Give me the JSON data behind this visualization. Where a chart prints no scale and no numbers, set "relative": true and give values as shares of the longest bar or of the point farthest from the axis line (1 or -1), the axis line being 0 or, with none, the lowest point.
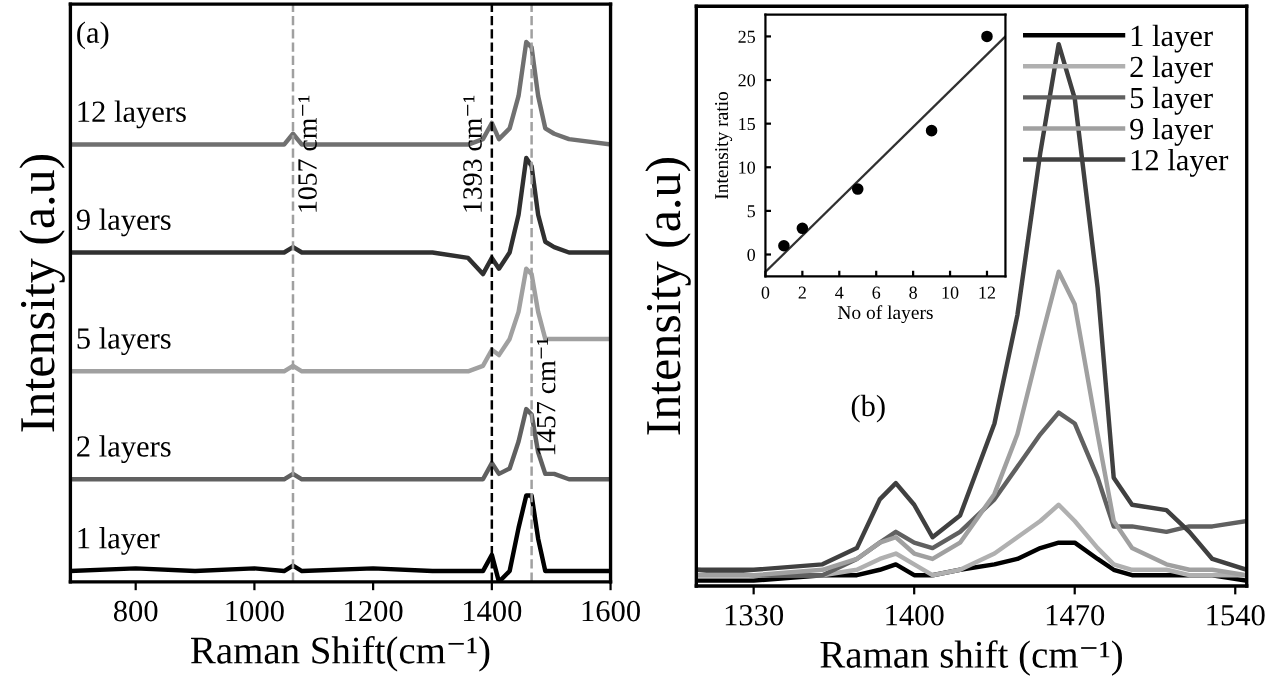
{
  "chart_data": [
    {
      "type": "line",
      "xlabel": "Raman Shift(cm⁻¹)",
      "ylabel": "Intensity (a.u)",
      "relative": true,
      "tick_labels": "x",
      "legend": false,
      "grid": false,
      "xlim": [
        690,
        1600
      ],
      "xticks": [
        800,
        1000,
        1200,
        1400,
        1600
      ],
      "x": [
        690,
        800,
        900,
        1000,
        1050,
        1065,
        1080,
        1200,
        1300,
        1360,
        1385,
        1400,
        1412,
        1430,
        1445,
        1458,
        1467,
        1478,
        1490,
        1505,
        1530,
        1600
      ],
      "series": [
        {
          "name": "12 layers",
          "color": "#707070",
          "values": [
            0.81,
            0.81,
            0.81,
            0.81,
            0.81,
            0.83,
            0.81,
            0.81,
            0.81,
            0.81,
            0.82,
            0.85,
            0.82,
            0.84,
            0.9,
            1.0,
            0.99,
            0.9,
            0.84,
            0.83,
            0.82,
            0.81
          ]
        },
        {
          "name": "9 layers",
          "color": "#303030",
          "values": [
            0.61,
            0.61,
            0.61,
            0.61,
            0.61,
            0.62,
            0.61,
            0.61,
            0.61,
            0.6,
            0.57,
            0.6,
            0.58,
            0.61,
            0.68,
            0.785,
            0.77,
            0.68,
            0.63,
            0.62,
            0.61,
            0.61
          ]
        },
        {
          "name": "5 layers",
          "color": "#a0a0a0",
          "values": [
            0.39,
            0.39,
            0.39,
            0.39,
            0.39,
            0.4,
            0.39,
            0.39,
            0.39,
            0.39,
            0.4,
            0.43,
            0.42,
            0.45,
            0.5,
            0.58,
            0.57,
            0.5,
            0.45,
            0.45,
            0.45,
            0.45
          ]
        },
        {
          "name": "2 layers",
          "color": "#606060",
          "values": [
            0.19,
            0.19,
            0.19,
            0.19,
            0.19,
            0.2,
            0.19,
            0.19,
            0.19,
            0.19,
            0.19,
            0.22,
            0.2,
            0.21,
            0.26,
            0.32,
            0.31,
            0.24,
            0.2,
            0.2,
            0.19,
            0.19
          ]
        },
        {
          "name": "1 layer",
          "color": "#000000",
          "values": [
            0.02,
            0.025,
            0.02,
            0.025,
            0.02,
            0.03,
            0.02,
            0.025,
            0.02,
            0.02,
            0.02,
            0.05,
            0.0,
            0.02,
            0.1,
            0.16,
            0.16,
            0.08,
            0.02,
            0.02,
            0.02,
            0.02
          ]
        }
      ],
      "ref_lines": [
        {
          "axis": "x",
          "value": 1065,
          "label": "1057 cm⁻¹",
          "color": "#a0a0a0",
          "line_style": "dashed"
        },
        {
          "axis": "x",
          "value": 1400,
          "label": "1393 cm⁻¹",
          "color": "#000000",
          "line_style": "dashed"
        },
        {
          "axis": "x",
          "value": 1467,
          "label": "1457 cm⁻¹",
          "color": "#a0a0a0",
          "line_style": "dashed"
        }
      ],
      "annotations": [
        "(a)"
      ]
    },
    {
      "type": "line",
      "xlabel": "Raman shift (cm⁻¹)",
      "ylabel": "Intensity (a.u)",
      "relative": true,
      "tick_labels": "x",
      "legend": "top right",
      "grid": false,
      "xlim": [
        1305,
        1545
      ],
      "xticks": [
        1330,
        1400,
        1470,
        1540
      ],
      "x": [
        1305,
        1330,
        1360,
        1375,
        1385,
        1392,
        1400,
        1408,
        1420,
        1435,
        1445,
        1455,
        1463,
        1470,
        1480,
        1487,
        1495,
        1510,
        1520,
        1530,
        1545
      ],
      "series": [
        {
          "name": "1 layer",
          "color": "#000000",
          "values": [
            0.01,
            0.01,
            0.02,
            0.02,
            0.03,
            0.04,
            0.02,
            0.02,
            0.03,
            0.04,
            0.05,
            0.07,
            0.08,
            0.08,
            0.05,
            0.03,
            0.02,
            0.02,
            0.02,
            0.02,
            0.01
          ]
        },
        {
          "name": "2 layer",
          "color": "#b0b0b0",
          "values": [
            0.02,
            0.02,
            0.02,
            0.03,
            0.05,
            0.06,
            0.04,
            0.02,
            0.03,
            0.06,
            0.09,
            0.12,
            0.15,
            0.12,
            0.07,
            0.04,
            0.03,
            0.03,
            0.02,
            0.02,
            0.02
          ]
        },
        {
          "name": "5 layer",
          "color": "#606060",
          "values": [
            0.03,
            0.02,
            0.02,
            0.05,
            0.08,
            0.1,
            0.08,
            0.07,
            0.1,
            0.16,
            0.22,
            0.28,
            0.32,
            0.3,
            0.2,
            0.11,
            0.11,
            0.1,
            0.11,
            0.11,
            0.12
          ]
        },
        {
          "name": "9 layer",
          "color": "#a0a0a0",
          "values": [
            0.02,
            0.02,
            0.03,
            0.05,
            0.08,
            0.09,
            0.06,
            0.05,
            0.08,
            0.17,
            0.28,
            0.45,
            0.58,
            0.52,
            0.28,
            0.12,
            0.07,
            0.04,
            0.03,
            0.03,
            0.02
          ]
        },
        {
          "name": "12 layer",
          "color": "#404040",
          "values": [
            0.03,
            0.03,
            0.04,
            0.07,
            0.16,
            0.19,
            0.15,
            0.09,
            0.13,
            0.3,
            0.5,
            0.8,
            1.0,
            0.9,
            0.55,
            0.2,
            0.15,
            0.14,
            0.1,
            0.05,
            0.03
          ]
        }
      ],
      "annotations": [
        "(b)"
      ]
    },
    {
      "type": "scatter",
      "xlabel": "No of layers",
      "ylabel": "Intensity ratio",
      "grid": false,
      "legend": false,
      "xlim": [
        0,
        13
      ],
      "xticks": [
        0,
        2,
        4,
        6,
        8,
        10,
        12
      ],
      "ylim": [
        -2.5,
        27.5
      ],
      "yticks": [
        0,
        5,
        10,
        15,
        20,
        25
      ],
      "series": [
        {
          "color": "#000000",
          "marker": "circle",
          "x": [
            1,
            2,
            5,
            9,
            12
          ],
          "values": [
            1,
            3,
            7.5,
            14.2,
            25
          ]
        },
        {
          "type": "line",
          "color": "#303030",
          "x": [
            0,
            13
          ],
          "values": [
            -2,
            25
          ]
        }
      ]
    }
  ]
}
